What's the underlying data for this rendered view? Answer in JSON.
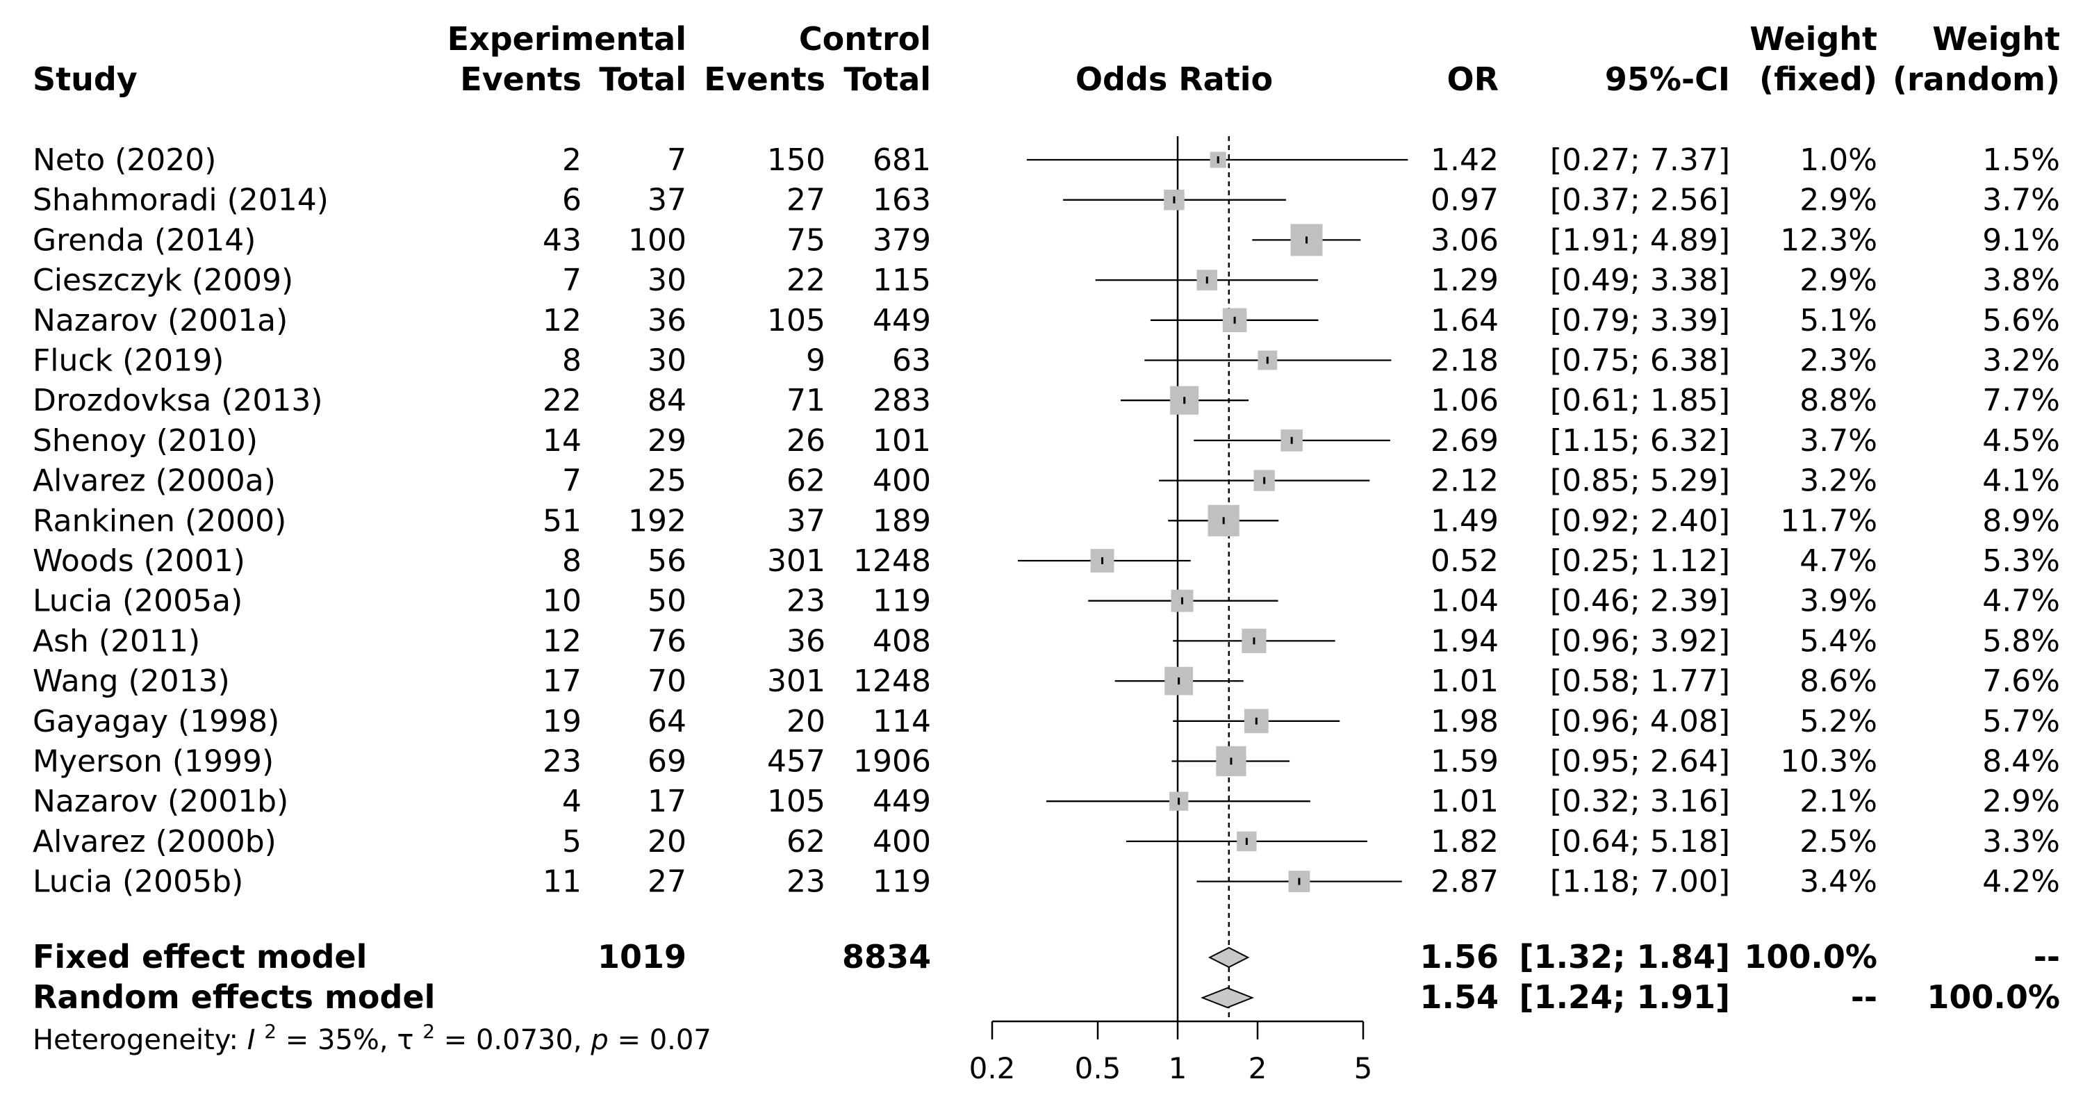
{
  "chart_data": {
    "type": "forest",
    "title": "",
    "headers": {
      "study": "Study",
      "experimental": "Experimental",
      "control": "Control",
      "events": "Events",
      "total": "Total",
      "odds_ratio": "Odds Ratio",
      "or": "OR",
      "ci": "95%-CI",
      "weight": "Weight",
      "fixed": "(fixed)",
      "random": "(random)"
    },
    "studies": [
      {
        "name": "Neto (2020)",
        "exp_events": "2",
        "exp_total": "7",
        "ctrl_events": "150",
        "ctrl_total": "681",
        "or": 1.42,
        "lo": 0.27,
        "hi": 7.37,
        "or_text": "1.42",
        "ci_text": "[0.27; 7.37]",
        "w_fixed": "1.0%",
        "w_random": "1.5%"
      },
      {
        "name": "Shahmoradi (2014)",
        "exp_events": "6",
        "exp_total": "37",
        "ctrl_events": "27",
        "ctrl_total": "163",
        "or": 0.97,
        "lo": 0.37,
        "hi": 2.56,
        "or_text": "0.97",
        "ci_text": "[0.37; 2.56]",
        "w_fixed": "2.9%",
        "w_random": "3.7%"
      },
      {
        "name": "Grenda (2014)",
        "exp_events": "43",
        "exp_total": "100",
        "ctrl_events": "75",
        "ctrl_total": "379",
        "or": 3.06,
        "lo": 1.91,
        "hi": 4.89,
        "or_text": "3.06",
        "ci_text": "[1.91; 4.89]",
        "w_fixed": "12.3%",
        "w_random": "9.1%"
      },
      {
        "name": "Cieszczyk (2009)",
        "exp_events": "7",
        "exp_total": "30",
        "ctrl_events": "22",
        "ctrl_total": "115",
        "or": 1.29,
        "lo": 0.49,
        "hi": 3.38,
        "or_text": "1.29",
        "ci_text": "[0.49; 3.38]",
        "w_fixed": "2.9%",
        "w_random": "3.8%"
      },
      {
        "name": "Nazarov (2001a)",
        "exp_events": "12",
        "exp_total": "36",
        "ctrl_events": "105",
        "ctrl_total": "449",
        "or": 1.64,
        "lo": 0.79,
        "hi": 3.39,
        "or_text": "1.64",
        "ci_text": "[0.79; 3.39]",
        "w_fixed": "5.1%",
        "w_random": "5.6%"
      },
      {
        "name": "Fluck (2019)",
        "exp_events": "8",
        "exp_total": "30",
        "ctrl_events": "9",
        "ctrl_total": "63",
        "or": 2.18,
        "lo": 0.75,
        "hi": 6.38,
        "or_text": "2.18",
        "ci_text": "[0.75; 6.38]",
        "w_fixed": "2.3%",
        "w_random": "3.2%"
      },
      {
        "name": "Drozdovksa (2013)",
        "exp_events": "22",
        "exp_total": "84",
        "ctrl_events": "71",
        "ctrl_total": "283",
        "or": 1.06,
        "lo": 0.61,
        "hi": 1.85,
        "or_text": "1.06",
        "ci_text": "[0.61; 1.85]",
        "w_fixed": "8.8%",
        "w_random": "7.7%"
      },
      {
        "name": "Shenoy (2010)",
        "exp_events": "14",
        "exp_total": "29",
        "ctrl_events": "26",
        "ctrl_total": "101",
        "or": 2.69,
        "lo": 1.15,
        "hi": 6.32,
        "or_text": "2.69",
        "ci_text": "[1.15; 6.32]",
        "w_fixed": "3.7%",
        "w_random": "4.5%"
      },
      {
        "name": "Alvarez (2000a)",
        "exp_events": "7",
        "exp_total": "25",
        "ctrl_events": "62",
        "ctrl_total": "400",
        "or": 2.12,
        "lo": 0.85,
        "hi": 5.29,
        "or_text": "2.12",
        "ci_text": "[0.85; 5.29]",
        "w_fixed": "3.2%",
        "w_random": "4.1%"
      },
      {
        "name": "Rankinen (2000)",
        "exp_events": "51",
        "exp_total": "192",
        "ctrl_events": "37",
        "ctrl_total": "189",
        "or": 1.49,
        "lo": 0.92,
        "hi": 2.4,
        "or_text": "1.49",
        "ci_text": "[0.92; 2.40]",
        "w_fixed": "11.7%",
        "w_random": "8.9%"
      },
      {
        "name": "Woods (2001)",
        "exp_events": "8",
        "exp_total": "56",
        "ctrl_events": "301",
        "ctrl_total": "1248",
        "or": 0.52,
        "lo": 0.25,
        "hi": 1.12,
        "or_text": "0.52",
        "ci_text": "[0.25; 1.12]",
        "w_fixed": "4.7%",
        "w_random": "5.3%"
      },
      {
        "name": "Lucia (2005a)",
        "exp_events": "10",
        "exp_total": "50",
        "ctrl_events": "23",
        "ctrl_total": "119",
        "or": 1.04,
        "lo": 0.46,
        "hi": 2.39,
        "or_text": "1.04",
        "ci_text": "[0.46; 2.39]",
        "w_fixed": "3.9%",
        "w_random": "4.7%"
      },
      {
        "name": "Ash (2011)",
        "exp_events": "12",
        "exp_total": "76",
        "ctrl_events": "36",
        "ctrl_total": "408",
        "or": 1.94,
        "lo": 0.96,
        "hi": 3.92,
        "or_text": "1.94",
        "ci_text": "[0.96; 3.92]",
        "w_fixed": "5.4%",
        "w_random": "5.8%"
      },
      {
        "name": "Wang (2013)",
        "exp_events": "17",
        "exp_total": "70",
        "ctrl_events": "301",
        "ctrl_total": "1248",
        "or": 1.01,
        "lo": 0.58,
        "hi": 1.77,
        "or_text": "1.01",
        "ci_text": "[0.58; 1.77]",
        "w_fixed": "8.6%",
        "w_random": "7.6%"
      },
      {
        "name": "Gayagay (1998)",
        "exp_events": "19",
        "exp_total": "64",
        "ctrl_events": "20",
        "ctrl_total": "114",
        "or": 1.98,
        "lo": 0.96,
        "hi": 4.08,
        "or_text": "1.98",
        "ci_text": "[0.96; 4.08]",
        "w_fixed": "5.2%",
        "w_random": "5.7%"
      },
      {
        "name": "Myerson (1999)",
        "exp_events": "23",
        "exp_total": "69",
        "ctrl_events": "457",
        "ctrl_total": "1906",
        "or": 1.59,
        "lo": 0.95,
        "hi": 2.64,
        "or_text": "1.59",
        "ci_text": "[0.95; 2.64]",
        "w_fixed": "10.3%",
        "w_random": "8.4%"
      },
      {
        "name": "Nazarov (2001b)",
        "exp_events": "4",
        "exp_total": "17",
        "ctrl_events": "105",
        "ctrl_total": "449",
        "or": 1.01,
        "lo": 0.32,
        "hi": 3.16,
        "or_text": "1.01",
        "ci_text": "[0.32; 3.16]",
        "w_fixed": "2.1%",
        "w_random": "2.9%"
      },
      {
        "name": "Alvarez (2000b)",
        "exp_events": "5",
        "exp_total": "20",
        "ctrl_events": "62",
        "ctrl_total": "400",
        "or": 1.82,
        "lo": 0.64,
        "hi": 5.18,
        "or_text": "1.82",
        "ci_text": "[0.64; 5.18]",
        "w_fixed": "2.5%",
        "w_random": "3.3%"
      },
      {
        "name": "Lucia (2005b)",
        "exp_events": "11",
        "exp_total": "27",
        "ctrl_events": "23",
        "ctrl_total": "119",
        "or": 2.87,
        "lo": 1.18,
        "hi": 7.0,
        "or_text": "2.87",
        "ci_text": "[1.18; 7.00]",
        "w_fixed": "3.4%",
        "w_random": "4.2%"
      }
    ],
    "pooled": [
      {
        "name": "Fixed effect model",
        "exp_total": "1019",
        "ctrl_total": "8834",
        "or": 1.56,
        "lo": 1.32,
        "hi": 1.84,
        "or_text": "1.56",
        "ci_text": "[1.32; 1.84]",
        "w_fixed": "100.0%",
        "w_random": "--"
      },
      {
        "name": "Random effects model",
        "exp_total": "",
        "ctrl_total": "",
        "or": 1.54,
        "lo": 1.24,
        "hi": 1.91,
        "or_text": "1.54",
        "ci_text": "[1.24; 1.91]",
        "w_fixed": "--",
        "w_random": "100.0%"
      }
    ],
    "heterogeneity": {
      "label": "Heterogeneity:",
      "i2_symbol": "I",
      "i2_sup": "2",
      "i2_value": " = 35%, ",
      "tau_symbol": "τ",
      "tau_sup": "2",
      "tau_value": " = 0.0730, ",
      "p_symbol": "p",
      "p_value": " = 0.07"
    },
    "x_axis": {
      "scale": "log",
      "range": [
        0.2,
        5
      ],
      "ticks": [
        0.2,
        0.5,
        1,
        2,
        5
      ],
      "tick_labels": [
        "0.2",
        "0.5",
        "1",
        "2",
        "5"
      ],
      "null_line": 1,
      "dashed_line": 1.56
    },
    "colors": {
      "box": "#c0c0c0",
      "line": "#000000",
      "diamond": "#c8c8c8"
    }
  }
}
